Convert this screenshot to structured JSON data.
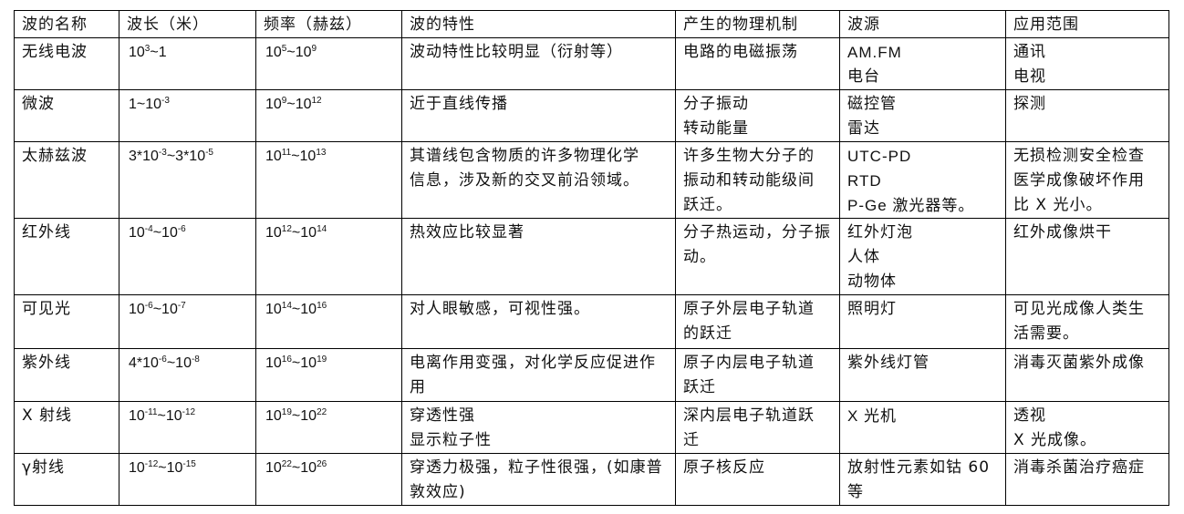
{
  "headers": [
    "波的名称",
    "波长（米）",
    "频率（赫兹）",
    "波的特性",
    "产生的物理机制",
    "波源",
    "应用范围"
  ],
  "rows": [
    {
      "name": [
        "无线电波"
      ],
      "wavelength": [
        {
          "t": "10"
        },
        {
          "sup": "3"
        },
        {
          "t": "~1"
        }
      ],
      "frequency": [
        {
          "t": "10"
        },
        {
          "sup": "5"
        },
        {
          "t": "~10"
        },
        {
          "sup": "9"
        }
      ],
      "property": [
        "波动特性比较明显（衍射等）"
      ],
      "mechanism": [
        "电路的电磁振荡"
      ],
      "source": [
        "AM.FM",
        "电台"
      ],
      "application": [
        "通讯",
        "电视"
      ]
    },
    {
      "name": [
        "微波"
      ],
      "wavelength": [
        {
          "t": "1~10"
        },
        {
          "sup": "-3"
        }
      ],
      "frequency": [
        {
          "t": "10"
        },
        {
          "sup": "9"
        },
        {
          "t": "~10"
        },
        {
          "sup": "12"
        }
      ],
      "property": [
        "近于直线传播"
      ],
      "mechanism": [
        "分子振动",
        "转动能量"
      ],
      "source": [
        "磁控管",
        "雷达"
      ],
      "application": [
        "探测"
      ]
    },
    {
      "name": [
        "太赫兹波"
      ],
      "wavelength": [
        {
          "t": "3*10"
        },
        {
          "sup": "-3"
        },
        {
          "t": "~3*10"
        },
        {
          "sup": "-5"
        }
      ],
      "frequency": [
        {
          "t": "10"
        },
        {
          "sup": "11"
        },
        {
          "t": "~10"
        },
        {
          "sup": "13"
        }
      ],
      "property": [
        "其谱线包含物质的许多物理化学",
        "信息，涉及新的交叉前沿领域。"
      ],
      "mechanism": [
        "许多生物大分子的",
        "振动和转动能级间",
        "跃迁。"
      ],
      "source": [
        "UTC-PD",
        "RTD",
        "P-Ge 激光器等。"
      ],
      "application": [
        "无损检测安全检查",
        "医学成像破坏作用",
        "比 X 光小。"
      ]
    },
    {
      "name": [
        "红外线"
      ],
      "wavelength": [
        {
          "t": "10"
        },
        {
          "sup": "-4"
        },
        {
          "t": "~10"
        },
        {
          "sup": "-6"
        }
      ],
      "frequency": [
        {
          "t": "10"
        },
        {
          "sup": "12"
        },
        {
          "t": "~10"
        },
        {
          "sup": "14"
        }
      ],
      "property": [
        "热效应比较显著"
      ],
      "mechanism": [
        "分子热运动，分子振",
        "动。"
      ],
      "source": [
        "红外灯泡",
        "人体",
        "动物体"
      ],
      "application": [
        "红外成像烘干"
      ]
    },
    {
      "name": [
        "可见光"
      ],
      "wavelength": [
        {
          "t": "10"
        },
        {
          "sup": "-6"
        },
        {
          "t": "~10"
        },
        {
          "sup": "-7"
        }
      ],
      "frequency": [
        {
          "t": "10"
        },
        {
          "sup": "14"
        },
        {
          "t": "~10"
        },
        {
          "sup": "16"
        }
      ],
      "property": [
        "对人眼敏感，可视性强。"
      ],
      "mechanism": [
        "原子外层电子轨道",
        "的跃迁"
      ],
      "source": [
        "照明灯"
      ],
      "application": [
        "可见光成像人类生",
        "活需要。"
      ]
    },
    {
      "name": [
        "紫外线"
      ],
      "wavelength": [
        {
          "t": "4*10"
        },
        {
          "sup": "-6"
        },
        {
          "t": "~10"
        },
        {
          "sup": "-8"
        }
      ],
      "frequency": [
        {
          "t": "10"
        },
        {
          "sup": "16"
        },
        {
          "t": "~10"
        },
        {
          "sup": "19"
        }
      ],
      "property": [
        "电离作用变强，对化学反应促进作",
        "用"
      ],
      "mechanism": [
        "原子内层电子轨道",
        "跃迁"
      ],
      "source": [
        "紫外线灯管"
      ],
      "application": [
        "消毒灭菌紫外成像"
      ]
    },
    {
      "name": [
        " X 射线"
      ],
      "wavelength": [
        {
          "t": "10"
        },
        {
          "sup": "-11"
        },
        {
          "t": "~10"
        },
        {
          "sup": "-12"
        }
      ],
      "frequency": [
        {
          "t": "10"
        },
        {
          "sup": "19"
        },
        {
          "t": "~10"
        },
        {
          "sup": "22"
        }
      ],
      "property": [
        "穿透性强",
        "显示粒子性"
      ],
      "mechanism": [
        "深内层电子轨道跃",
        "迁"
      ],
      "source": [
        " X 光机"
      ],
      "application": [
        "透视",
        "X 光成像。"
      ]
    },
    {
      "name": [
        "γ射线"
      ],
      "wavelength": [
        {
          "t": "10"
        },
        {
          "sup": "-12"
        },
        {
          "t": "~10"
        },
        {
          "sup": "-15"
        }
      ],
      "frequency": [
        {
          "t": "10"
        },
        {
          "sup": "22"
        },
        {
          "t": "~10"
        },
        {
          "sup": "26"
        }
      ],
      "property": [
        "穿透力极强，粒子性很强，(如康普",
        "敦效应)"
      ],
      "mechanism": [
        "原子核反应"
      ],
      "source": [
        "放射性元素如钴 60",
        "等"
      ],
      "application": [
        "消毒杀菌治疗癌症"
      ]
    }
  ]
}
